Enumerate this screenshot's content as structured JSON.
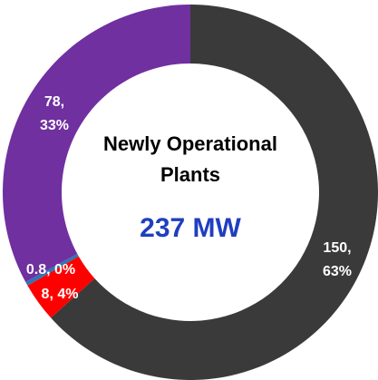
{
  "chart_data": {
    "type": "donut",
    "title": "Newly Operational Plants",
    "total_label": "237 MW",
    "values": [
      150,
      8,
      0.8,
      78
    ],
    "value_labels": [
      "150,\n63%",
      "8, 4%",
      "0.8, 0%",
      "78,\n33%"
    ],
    "colors": [
      "#3a3a3a",
      "#ff0000",
      "#2e75b6",
      "#7030a0"
    ]
  }
}
